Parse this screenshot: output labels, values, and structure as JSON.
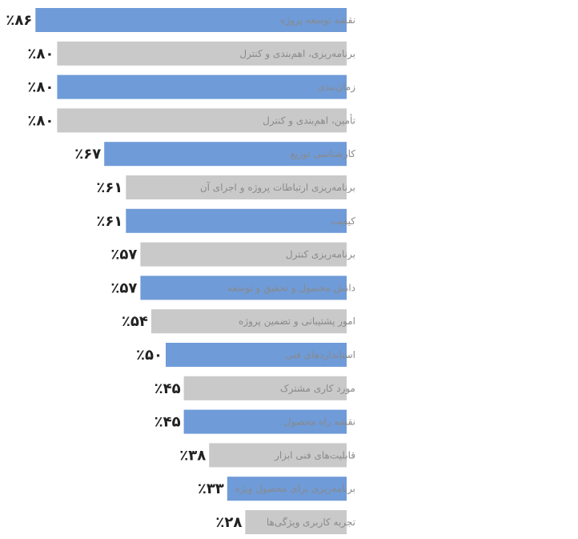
{
  "colors": {
    "blue": "#6f9bd8",
    "gray": "#c9c9c9",
    "value_text": "#222222",
    "label_text": "#8a8a8a"
  },
  "chart_data": {
    "type": "bar",
    "orientation": "horizontal",
    "grid": false,
    "legend": "none",
    "xlim": [
      0,
      90
    ],
    "categories": [
      "نقشه توسعه پروژه",
      "برنامه‌ریزی، اهم‌بندی و کنترل",
      "زمان‌بندی",
      "تأمین، اهم‌بندی و کنترل",
      "کارشناسی توزیع",
      "برنامه‌ریزی ارتباطات پروژه و اجرای آن",
      "کیفیت",
      "برنامه‌ریزی کنترل",
      "دانش محصول و تحقیق و توسعه",
      "امور پشتیبانی و تضمین پروژه",
      "استانداردهای فنی",
      "مورد کاری مشترک",
      "نقشه راه محصول",
      "قابلیت‌های فنی ابزار",
      "برنامه‌ریزی برای محصول ویژه",
      "تجربه کاربری ویژگی‌ها"
    ],
    "values": [
      86,
      80,
      80,
      80,
      67,
      61,
      61,
      57,
      57,
      54,
      50,
      45,
      45,
      38,
      33,
      28
    ],
    "value_labels": [
      "٪۸۶",
      "٪۸۰",
      "٪۸۰",
      "٪۸۰",
      "٪۶۷",
      "٪۶۱",
      "٪۶۱",
      "٪۵۷",
      "٪۵۷",
      "٪۵۴",
      "٪۵۰",
      "٪۴۵",
      "٪۴۵",
      "٪۳۸",
      "٪۳۳",
      "٪۲۸"
    ],
    "bar_colors": [
      "blue",
      "gray",
      "blue",
      "gray",
      "blue",
      "gray",
      "blue",
      "gray",
      "blue",
      "gray",
      "blue",
      "gray",
      "blue",
      "gray",
      "blue",
      "gray"
    ]
  }
}
